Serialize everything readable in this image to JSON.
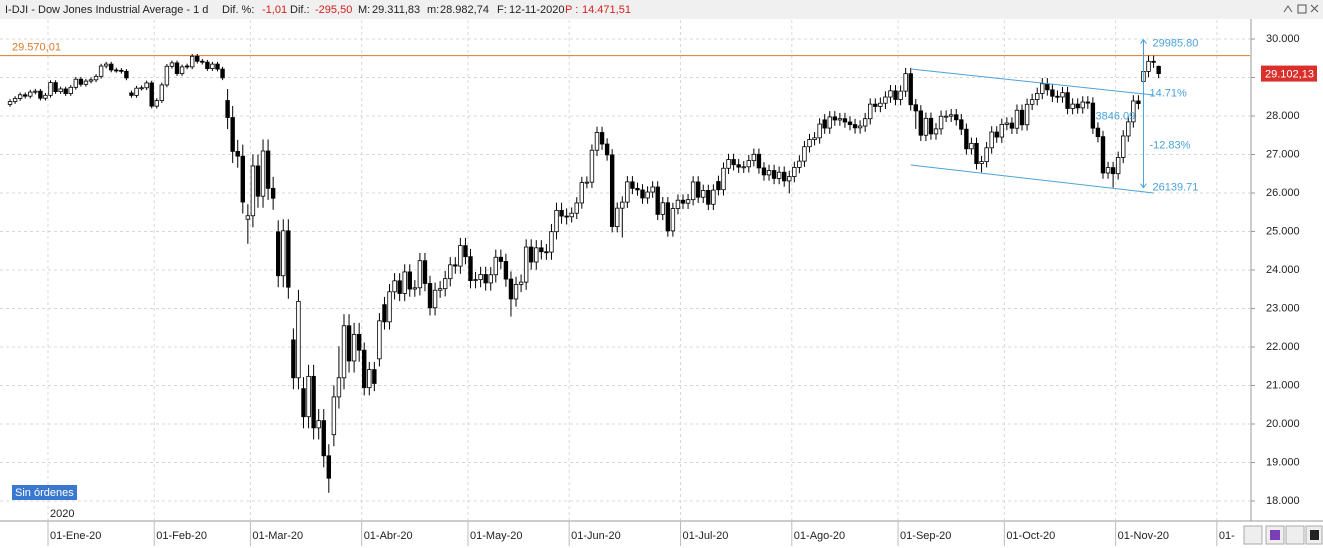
{
  "chart_data": {
    "type": "candlestick",
    "title": "I-DJI - Dow Jones Industrial Average - 1 d",
    "stats": [
      {
        "label": "Dif. %:",
        "value": "-1,01"
      },
      {
        "label": "Dif.:",
        "value": "-295,50"
      },
      {
        "label": "M:",
        "value": "29.311,83"
      },
      {
        "label": "m:",
        "value": "28.982,74"
      },
      {
        "label": "F:",
        "value": "12-11-2020"
      },
      {
        "label": "P :",
        "value": "14.471,51"
      }
    ],
    "button": "Sin órdenes",
    "x_year": "2020",
    "categories": [
      null,
      null,
      null,
      null,
      null,
      null,
      null,
      null,
      "01-Ene-20",
      null,
      null,
      null,
      null,
      null,
      null,
      null,
      null,
      null,
      null,
      null,
      null,
      null,
      null,
      null,
      null,
      null,
      null,
      null,
      null,
      "01-Feb-20",
      null,
      null,
      null,
      null,
      null,
      null,
      null,
      null,
      null,
      null,
      null,
      null,
      null,
      null,
      null,
      null,
      null,
      null,
      "01-Mar-20",
      null,
      null,
      null,
      null,
      null,
      null,
      null,
      null,
      null,
      null,
      null,
      null,
      null,
      null,
      null,
      null,
      null,
      null,
      null,
      null,
      null,
      "01-Abr-20",
      null,
      null,
      null,
      null,
      null,
      null,
      null,
      null,
      null,
      null,
      null,
      null,
      null,
      null,
      null,
      null,
      null,
      null,
      null,
      null,
      "01-May-20",
      null,
      null,
      null,
      null,
      null,
      null,
      null,
      null,
      null,
      null,
      null,
      null,
      null,
      null,
      null,
      null,
      null,
      null,
      null,
      "01-Jun-20",
      null,
      null,
      null,
      null,
      null,
      null,
      null,
      null,
      null,
      null,
      null,
      null,
      null,
      null,
      null,
      null,
      null,
      null,
      null,
      null,
      null,
      "01-Jul-20",
      null,
      null,
      null,
      null,
      null,
      null,
      null,
      null,
      null,
      null,
      null,
      null,
      null,
      null,
      null,
      null,
      null,
      null,
      null,
      null,
      null,
      "01-Ago-20",
      null,
      null,
      null,
      null,
      null,
      null,
      null,
      null,
      null,
      null,
      null,
      null,
      null,
      null,
      null,
      null,
      null,
      null,
      null,
      null,
      "01-Sep-20",
      null,
      null,
      null,
      null,
      null,
      null,
      null,
      null,
      null,
      null,
      null,
      null,
      null,
      null,
      null,
      null,
      null,
      null,
      null,
      null,
      "01-Oct-20",
      null,
      null,
      null,
      null,
      null,
      null,
      null,
      null,
      null,
      null,
      null,
      null,
      null,
      null,
      null,
      null,
      null,
      null,
      null,
      null,
      null,
      "01-Nov-20",
      null,
      null,
      null,
      null,
      null,
      null,
      null,
      null,
      null,
      null,
      null,
      null,
      null,
      null,
      null,
      null,
      null,
      null,
      null,
      "01-"
    ],
    "open": [
      28300,
      28376,
      28455,
      28551,
      28515,
      28621,
      28645,
      28462,
      28538,
      28868,
      28634,
      28703,
      28583,
      28745,
      28956,
      28823,
      28907,
      28940,
      29030,
      29298,
      29348,
      29196,
      29186,
      29160,
      28600,
      28535,
      28723,
      28734,
      28859,
      28256,
      28400,
      28807,
      29291,
      29380,
      29103,
      29300,
      29276,
      29551,
      29423,
      29398,
      29232,
      29348,
      29219,
      28402,
      27961,
      27081,
      26957,
      25320,
      25409,
      26703,
      25917,
      27091,
      26121,
      24992,
      23851,
      25018,
      22184,
      21200,
      20918,
      20189,
      21237,
      19899,
      20087,
      19174,
      19722,
      20704,
      21200,
      22552,
      21637,
      22327,
      21917,
      20943,
      21413,
      21693,
      23100,
      22653,
      23434,
      23719,
      23390,
      23950,
      23505,
      23538,
      24242,
      23650,
      23019,
      23475,
      23515,
      23775,
      24134,
      24102,
      24634,
      24346,
      23724,
      23750,
      23883,
      23665,
      23876,
      24331,
      24222,
      23764,
      23248,
      23625,
      23685,
      24597,
      24207,
      24576,
      24474,
      24465,
      24995,
      25548,
      25401,
      25383,
      25475,
      25742,
      26270,
      26282,
      27111,
      27572,
      27272,
      26990,
      25128,
      25606,
      25763,
      26290,
      26120,
      26080,
      25871,
      26025,
      26156,
      25445,
      25746,
      25016,
      25596,
      25813,
      25735,
      25827,
      26287,
      25890,
      26067,
      25707,
      26300,
      26086,
      26643,
      26870,
      26735,
      26672,
      26681,
      26841,
      27006,
      26652,
      26470,
      26585,
      26379,
      26540,
      26314,
      26428,
      26665,
      26828,
      27202,
      27387,
      27433,
      27900,
      27687,
      27977,
      27897,
      27931,
      27845,
      27778,
      27693,
      27740,
      27930,
      28308,
      28249,
      28332,
      28493,
      28654,
      28430,
      28646,
      29100,
      28293,
      28133,
      27501,
      27940,
      27535,
      27666,
      27993,
      27996,
      28032,
      27902,
      27657,
      27148,
      27289,
      26763,
      26815,
      27174,
      27584,
      27453,
      27782,
      27817,
      27683,
      28149,
      27773,
      28304,
      28426,
      28587,
      28838,
      28680,
      28514,
      28495,
      28606,
      28195,
      28309,
      28211,
      28364,
      28336,
      27685,
      27464,
      26520,
      26660,
      26502,
      26925,
      27481,
      27848,
      28391,
      28900,
      29158,
      29421,
      29290,
      null,
      null,
      null,
      null,
      null,
      null,
      null,
      null,
      null,
      null,
      null,
      null
    ],
    "high": [
      28436,
      28515,
      28611,
      28611,
      28681,
      28705,
      28705,
      28598,
      28928,
      28928,
      28763,
      28763,
      28805,
      29016,
      29016,
      28967,
      29000,
      29090,
      29358,
      29408,
      29408,
      29256,
      29246,
      29220,
      28660,
      28783,
      28794,
      28919,
      28919,
      28460,
      28867,
      29351,
      29440,
      29440,
      29336,
      29360,
      29611,
      29611,
      29483,
      29458,
      29408,
      29408,
      29279,
      28702,
      28261,
      27381,
      27257,
      25709,
      27003,
      27003,
      27391,
      27391,
      26421,
      25292,
      25318,
      25318,
      22484,
      23485,
      21218,
      21537,
      21537,
      20387,
      20387,
      19474,
      21004,
      22019,
      22852,
      22852,
      22627,
      22627,
      22117,
      21613,
      21613,
      22880,
      23300,
      23634,
      23919,
      23919,
      24150,
      24150,
      23738,
      24442,
      24442,
      23850,
      23675,
      23715,
      23975,
      24334,
      24334,
      24834,
      24834,
      24546,
      23950,
      24083,
      24083,
      24076,
      24531,
      24531,
      24422,
      23964,
      23825,
      23885,
      24797,
      24797,
      24776,
      24776,
      24674,
      25195,
      25748,
      25748,
      25601,
      25625,
      25892,
      26420,
      26432,
      27261,
      27722,
      27722,
      27422,
      27140,
      25756,
      25913,
      26440,
      26440,
      26270,
      26230,
      26175,
      26306,
      26306,
      25896,
      25896,
      25746,
      25963,
      25963,
      25977,
      26437,
      26437,
      26217,
      26217,
      26225,
      26450,
      26793,
      27020,
      27020,
      26885,
      26831,
      26991,
      27156,
      27156,
      26802,
      26735,
      26735,
      26690,
      26690,
      26578,
      26815,
      26978,
      27352,
      27537,
      27583,
      27941,
      28050,
      28127,
      28127,
      28081,
      28081,
      27995,
      27928,
      27890,
      28080,
      28458,
      28458,
      28482,
      28643,
      28804,
      28804,
      28796,
      29250,
      29250,
      28443,
      28283,
      28090,
      28090,
      27816,
      28143,
      28146,
      28182,
      28182,
      28052,
      27807,
      27439,
      27439,
      26965,
      27324,
      27734,
      27734,
      27932,
      27967,
      27967,
      28299,
      28299,
      28454,
      28576,
      28737,
      28988,
      28988,
      28830,
      28664,
      28756,
      28756,
      28459,
      28459,
      28514,
      28514,
      28486,
      27835,
      27614,
      26810,
      26810,
      27075,
      27631,
      27998,
      28541,
      28541,
      29985.8,
      29571,
      29571,
      29311.83,
      null,
      null,
      null,
      null,
      null,
      null,
      null,
      null,
      null,
      null,
      null,
      null
    ],
    "low": [
      28240,
      28316,
      28395,
      28455,
      28455,
      28561,
      28402,
      28402,
      28478,
      28574,
      28574,
      28523,
      28523,
      28685,
      28763,
      28763,
      28847,
      28880,
      28970,
      29238,
      29136,
      29126,
      29100,
      28930,
      28475,
      28475,
      28663,
      28674,
      28196,
      28196,
      28340,
      28747,
      29231,
      29043,
      29043,
      29216,
      29216,
      29363,
      29338,
      29172,
      29172,
      29159,
      28932,
      27661,
      26781,
      26657,
      25466,
      24681,
      25109,
      25617,
      25617,
      25821,
      25565,
      23551,
      23551,
      23253,
      20900,
      20900,
      19889,
      19889,
      19599,
      19599,
      18874,
      18213,
      19422,
      20400,
      20900,
      21337,
      21337,
      21617,
      20743,
      20743,
      20853,
      21493,
      22453,
      22453,
      23234,
      23190,
      23190,
      23305,
      23305,
      23338,
      23450,
      22819,
      22819,
      23275,
      23315,
      23575,
      23902,
      23902,
      24146,
      23524,
      23524,
      23550,
      23465,
      23465,
      23676,
      24022,
      23564,
      22790,
      23048,
      23425,
      23485,
      24007,
      24007,
      24274,
      24265,
      24265,
      24795,
      25201,
      25183,
      25233,
      25325,
      25592,
      26120,
      26132,
      26961,
      27122,
      26840,
      24978,
      24978,
      24843,
      25613,
      25970,
      25930,
      25721,
      25721,
      25875,
      25295,
      25295,
      24866,
      24866,
      25446,
      25585,
      25585,
      25677,
      25740,
      25740,
      25557,
      25557,
      25936,
      25936,
      26493,
      26585,
      26522,
      26522,
      26531,
      26691,
      26502,
      26320,
      26320,
      26229,
      26229,
      26164,
      25990,
      26278,
      26515,
      26678,
      27052,
      27237,
      27283,
      27537,
      27537,
      27747,
      27747,
      27695,
      27628,
      27543,
      27543,
      27590,
      27780,
      28099,
      28099,
      28182,
      28343,
      28280,
      28280,
      28496,
      28143,
      27664,
      27351,
      27351,
      27385,
      27385,
      27516,
      27843,
      27846,
      27752,
      27507,
      26998,
      26998,
      26613,
      26537,
      26665,
      27024,
      27303,
      27303,
      27632,
      27533,
      27533,
      27623,
      27623,
      28154,
      28276,
      28437,
      28530,
      28364,
      28345,
      28345,
      28045,
      28045,
      28061,
      28061,
      28186,
      27535,
      27314,
      26370,
      26370,
      26140,
      26352,
      26775,
      27331,
      27698,
      28173,
      28850,
      29008,
      29248,
      28982.74,
      null,
      null,
      null,
      null,
      null,
      null,
      null,
      null,
      null,
      null,
      null,
      null
    ],
    "close": [
      28376,
      28455,
      28551,
      28515,
      28621,
      28645,
      28462,
      28538,
      28868,
      28634,
      28703,
      28583,
      28745,
      28956,
      28823,
      28907,
      28940,
      29030,
      29298,
      29348,
      29196,
      29186,
      29160,
      28990,
      28535,
      28723,
      28734,
      28859,
      28256,
      28400,
      28807,
      29291,
      29380,
      29103,
      29276,
      29276,
      29551,
      29423,
      29398,
      29232,
      29348,
      29219,
      28992,
      27961,
      27081,
      26957,
      25766,
      25409,
      26703,
      25917,
      27091,
      26121,
      25865,
      23851,
      25018,
      23553,
      21200,
      23185,
      20189,
      21237,
      19899,
      20087,
      19174,
      18592,
      20704,
      21200,
      22552,
      21637,
      22327,
      21917,
      20943,
      21413,
      21053,
      22680,
      22653,
      23434,
      23719,
      23390,
      23950,
      23505,
      23538,
      24242,
      23650,
      23019,
      23475,
      23515,
      23775,
      24134,
      24102,
      24634,
      24346,
      23724,
      23750,
      23883,
      23665,
      23876,
      24331,
      24222,
      23764,
      23248,
      23625,
      23685,
      24597,
      24207,
      24576,
      24474,
      24465,
      24995,
      25548,
      25401,
      25383,
      25475,
      25742,
      26270,
      26282,
      27111,
      27572,
      27272,
      26990,
      25128,
      25606,
      25763,
      26290,
      26120,
      26080,
      25871,
      26025,
      26156,
      25445,
      25746,
      25016,
      25596,
      25813,
      25735,
      25827,
      26287,
      25890,
      26067,
      25707,
      26075,
      26086,
      26643,
      26870,
      26735,
      26672,
      26681,
      26841,
      27006,
      26652,
      26470,
      26585,
      26379,
      26540,
      26314,
      26428,
      26665,
      26828,
      27202,
      27387,
      27433,
      27791,
      27687,
      27977,
      27897,
      27931,
      27845,
      27778,
      27693,
      27740,
      27930,
      28308,
      28249,
      28332,
      28493,
      28654,
      28430,
      28646,
      29100,
      28293,
      28133,
      27501,
      27940,
      27535,
      27666,
      27993,
      27996,
      28032,
      27902,
      27657,
      27148,
      27289,
      26763,
      26815,
      27174,
      27584,
      27453,
      27782,
      27817,
      27683,
      28149,
      27773,
      28304,
      28426,
      28587,
      28838,
      28680,
      28514,
      28495,
      28606,
      28195,
      28309,
      28211,
      28364,
      28336,
      27685,
      27464,
      26520,
      26660,
      26502,
      26925,
      27481,
      27848,
      28391,
      28323,
      29158,
      29421,
      29398,
      29102.13,
      null,
      null,
      null,
      null,
      null,
      null,
      null,
      null,
      null,
      null,
      null,
      null
    ],
    "up_color": "#ffffff",
    "down_color": "#000000",
    "outline_color": "#000000",
    "ylim": [
      17506,
      30494
    ],
    "yticks": [
      {
        "value": 18000,
        "label": "18.000"
      },
      {
        "value": 19000,
        "label": "19.000"
      },
      {
        "value": 20000,
        "label": "20.000"
      },
      {
        "value": 21000,
        "label": "21.000"
      },
      {
        "value": 22000,
        "label": "22.000"
      },
      {
        "value": 23000,
        "label": "23.000"
      },
      {
        "value": 24000,
        "label": "24.000"
      },
      {
        "value": 25000,
        "label": "25.000"
      },
      {
        "value": 26000,
        "label": "26.000"
      },
      {
        "value": 27000,
        "label": "27.000"
      },
      {
        "value": 28000,
        "label": "28.000"
      },
      {
        "value": 29000,
        "label": "29.000"
      },
      {
        "value": 30000,
        "label": "30.000"
      }
    ],
    "grid": true,
    "price_line": {
      "value": 29570.01,
      "label": "29.570,01",
      "color": "#e0782a"
    },
    "last_price": {
      "value": 29102.13,
      "label": "29.102,13",
      "color": "#d9302c"
    },
    "drawing_color": "#4aa3d8",
    "channel": [
      {
        "from": {
          "index": 178,
          "value": 29221
        },
        "to": {
          "index": 226,
          "value": 28545
        }
      },
      {
        "from": {
          "index": 178,
          "value": 26727
        },
        "to": {
          "index": 226,
          "value": 26000
        }
      }
    ],
    "measure": {
      "index": 224,
      "high": {
        "value": 29985.8,
        "label": "29985.80"
      },
      "low": {
        "value": 26139.71,
        "label": "26139.71"
      },
      "rise": {
        "value": 14.71,
        "label": "14.71%"
      },
      "range": 3846.09,
      "fall": {
        "value": -12.83,
        "label": "-12.83%"
      }
    }
  }
}
